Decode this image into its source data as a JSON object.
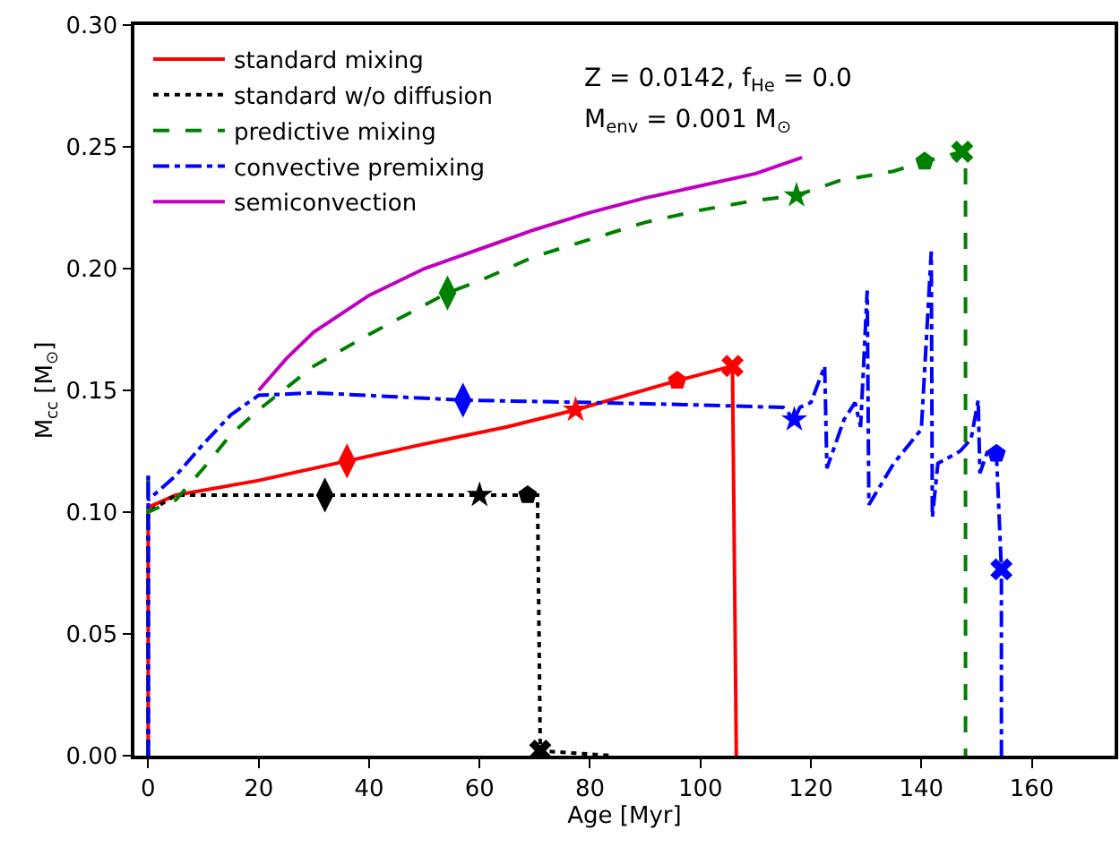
{
  "chart_data": {
    "type": "line",
    "xlabel": "Age [Myr]",
    "ylabel": "M$_{cc}$ [M$_{⊙}$]",
    "annotations": [
      "Z = 0.0142, f$_{He}$ = 0.0",
      "M$_{env}$ = 0.001 M$_{⊙}$"
    ],
    "xlim": [
      -2.5,
      175
    ],
    "xticks": [
      0,
      20,
      40,
      60,
      80,
      100,
      120,
      140,
      160
    ],
    "ylim": [
      0,
      0.3
    ],
    "yticks": [
      {
        "value": 0,
        "label": "0.00"
      },
      {
        "value": 0.05,
        "label": "0.05"
      },
      {
        "value": 0.1,
        "label": "0.10"
      },
      {
        "value": 0.15,
        "label": "0.15"
      },
      {
        "value": 0.2,
        "label": "0.20"
      },
      {
        "value": 0.25,
        "label": "0.25"
      },
      {
        "value": 0.3,
        "label": "0.30"
      }
    ],
    "legend": "top left",
    "series": [
      {
        "name": "standard mixing",
        "color": "#ff0000",
        "line_style": "solid",
        "x": [
          0,
          0,
          5,
          20,
          36,
          50,
          65,
          77.4,
          95.8,
          105.8,
          106.5
        ],
        "values": [
          0,
          0.102,
          0.107,
          0.113,
          0.121,
          0.128,
          0.135,
          0.142,
          0.154,
          0.16,
          0
        ]
      },
      {
        "name": "standard w/o diffusion",
        "color": "#000000",
        "line_style": "dotted",
        "x": [
          0,
          0,
          5,
          32,
          60,
          68.7,
          70.5,
          71,
          84
        ],
        "values": [
          0,
          0.1,
          0.107,
          0.107,
          0.107,
          0.107,
          0.107,
          0.002,
          0
        ]
      },
      {
        "name": "predictive mixing",
        "color": "#008000",
        "line_style": "dashdot_dashed",
        "x": [
          0,
          0,
          0,
          5,
          10,
          15,
          20,
          30,
          40,
          54.2,
          60,
          70,
          80,
          90,
          100,
          110,
          117.4,
          125,
          135,
          140.6,
          147.4,
          148,
          148
        ],
        "values": [
          0,
          0.117,
          0.1,
          0.105,
          0.118,
          0.132,
          0.142,
          0.16,
          0.173,
          0.19,
          0.195,
          0.205,
          0.212,
          0.219,
          0.224,
          0.228,
          0.23,
          0.236,
          0.24,
          0.244,
          0.248,
          0.248,
          0
        ]
      },
      {
        "name": "convective premixing",
        "color": "#0000ff",
        "line_style": "dashdot",
        "x": [
          0,
          0,
          0,
          5,
          10,
          15,
          20,
          30,
          57,
          80,
          100,
          115,
          117,
          118,
          120,
          122.5,
          122.9,
          126,
          128,
          129,
          130.2,
          130.5,
          135,
          140,
          141.8,
          142,
          143,
          147,
          149,
          150.3,
          150.6,
          152,
          153.6,
          154.5,
          154.5
        ],
        "values": [
          0,
          0.115,
          0.105,
          0.115,
          0.128,
          0.14,
          0.148,
          0.149,
          0.146,
          0.145,
          0.144,
          0.143,
          0.138,
          0.143,
          0.145,
          0.16,
          0.118,
          0.138,
          0.145,
          0.135,
          0.191,
          0.103,
          0.12,
          0.134,
          0.207,
          0.098,
          0.12,
          0.125,
          0.13,
          0.146,
          0.116,
          0.125,
          0.124,
          0.0765,
          0
        ]
      },
      {
        "name": "semiconvection",
        "color": "#bf00bf",
        "line_style": "solid",
        "x": [
          20,
          25,
          30,
          40,
          50,
          60,
          70,
          80,
          90,
          100,
          110,
          118.4
        ],
        "values": [
          0.15,
          0.163,
          0.174,
          0.189,
          0.2,
          0.208,
          0.216,
          0.223,
          0.229,
          0.234,
          0.239,
          0.2456
        ]
      },
      {
        "type": "scatter",
        "marker": "diamond",
        "color": "#ff0000",
        "x": [
          36
        ],
        "values": [
          0.121
        ]
      },
      {
        "type": "scatter",
        "marker": "star",
        "color": "#ff0000",
        "x": [
          77.4
        ],
        "values": [
          0.142
        ]
      },
      {
        "type": "scatter",
        "color": "#ff0000",
        "x": [
          95.8
        ],
        "values": [
          0.154
        ]
      },
      {
        "type": "scatter",
        "marker": "cross",
        "color": "#ff0000",
        "x": [
          105.8
        ],
        "values": [
          0.16
        ]
      },
      {
        "type": "scatter",
        "marker": "diamond",
        "color": "#000000",
        "x": [
          32
        ],
        "values": [
          0.107
        ]
      },
      {
        "type": "scatter",
        "marker": "star",
        "color": "#000000",
        "x": [
          60
        ],
        "values": [
          0.107
        ]
      },
      {
        "type": "scatter",
        "color": "#000000",
        "x": [
          68.7
        ],
        "values": [
          0.107
        ]
      },
      {
        "type": "scatter",
        "marker": "cross",
        "color": "#000000",
        "x": [
          71
        ],
        "values": [
          0.002
        ]
      },
      {
        "type": "scatter",
        "marker": "diamond",
        "color": "#008000",
        "x": [
          54.2
        ],
        "values": [
          0.19
        ]
      },
      {
        "type": "scatter",
        "marker": "star",
        "color": "#008000",
        "x": [
          117.4
        ],
        "values": [
          0.23
        ]
      },
      {
        "type": "scatter",
        "color": "#008000",
        "x": [
          140.6
        ],
        "values": [
          0.244
        ]
      },
      {
        "type": "scatter",
        "marker": "cross",
        "color": "#008000",
        "x": [
          147.4
        ],
        "values": [
          0.248
        ]
      },
      {
        "type": "scatter",
        "marker": "diamond",
        "color": "#0000ff",
        "x": [
          57
        ],
        "values": [
          0.146
        ]
      },
      {
        "type": "scatter",
        "marker": "star",
        "color": "#0000ff",
        "x": [
          117
        ],
        "values": [
          0.138
        ]
      },
      {
        "type": "scatter",
        "color": "#0000ff",
        "x": [
          153.6
        ],
        "values": [
          0.124
        ]
      },
      {
        "type": "scatter",
        "marker": "cross",
        "color": "#0000ff",
        "x": [
          154.5
        ],
        "values": [
          0.0765
        ]
      }
    ]
  }
}
